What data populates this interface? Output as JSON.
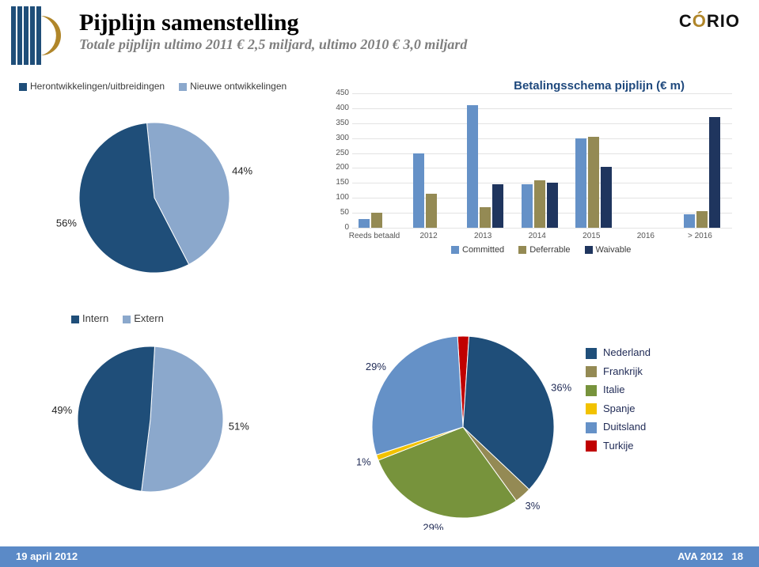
{
  "brand": {
    "text_left": "C",
    "text_o": "Ó",
    "text_right": "RIO",
    "color_accent": "#b0862a"
  },
  "title": "Pijplijn samenstelling",
  "subtitle": "Totale pijplijn ultimo 2011 € 2,5 miljard, ultimo 2010 € 3,0 miljard",
  "pie1": {
    "type": "pie",
    "legend": [
      {
        "label": "Herontwikkelingen/uitbreidingen",
        "color": "#1f4e79"
      },
      {
        "label": "Nieuwe ontwikkelingen",
        "color": "#8ba8cc"
      }
    ],
    "slices": [
      {
        "label": "44%",
        "value": 44,
        "color": "#8ba8cc"
      },
      {
        "label": "56%",
        "value": 56,
        "color": "#1f4e79"
      }
    ],
    "radius": 95
  },
  "bar": {
    "type": "bar",
    "title": "Betalingsschema pijplijn (€ m)",
    "ylim": [
      0,
      450
    ],
    "ytick_step": 50,
    "categories": [
      "Reeds betaald",
      "2012",
      "2013",
      "2014",
      "2015",
      "2016",
      "> 2016"
    ],
    "series": [
      {
        "label": "Committed",
        "color": "#6591c7",
        "values": [
          30,
          250,
          410,
          145,
          300,
          0,
          45
        ]
      },
      {
        "label": "Deferrable",
        "color": "#948a54",
        "values": [
          50,
          115,
          70,
          160,
          305,
          0,
          55
        ]
      },
      {
        "label": "Waivable",
        "color": "#1f355e",
        "values": [
          0,
          0,
          145,
          150,
          205,
          0,
          370
        ]
      }
    ]
  },
  "pie2": {
    "type": "pie",
    "legend": [
      {
        "label": "Intern",
        "color": "#1f4e79"
      },
      {
        "label": "Extern",
        "color": "#8ba8cc"
      }
    ],
    "slices": [
      {
        "label": "51%",
        "value": 51,
        "color": "#8ba8cc"
      },
      {
        "label": "49%",
        "value": 49,
        "color": "#1f4e79"
      }
    ],
    "radius": 92
  },
  "pie3": {
    "type": "pie",
    "title_pos": "none",
    "legend": [
      {
        "label": "Nederland",
        "color": "#1f4e79"
      },
      {
        "label": "Frankrijk",
        "color": "#948a54"
      },
      {
        "label": "Italie",
        "color": "#77933c"
      },
      {
        "label": "Spanje",
        "color": "#f2c200"
      },
      {
        "label": "Duitsland",
        "color": "#6591c7"
      },
      {
        "label": "Turkije",
        "color": "#c00000"
      }
    ],
    "slices": [
      {
        "label": "2%",
        "value": 2,
        "color": "#c00000"
      },
      {
        "label": "36%",
        "value": 36,
        "color": "#1f4e79"
      },
      {
        "label": "3%",
        "value": 3,
        "color": "#948a54"
      },
      {
        "label": "29%",
        "value": 29,
        "color": "#77933c"
      },
      {
        "label": "1%",
        "value": 1,
        "color": "#f2c200"
      },
      {
        "label": "29%",
        "value": 29,
        "color": "#6591c7"
      }
    ],
    "radius": 115,
    "label_color": "#1f2a55"
  },
  "footer": {
    "left": "19 april 2012",
    "right_label": "AVA 2012",
    "page": "18",
    "bg": "#5b8ac7"
  }
}
